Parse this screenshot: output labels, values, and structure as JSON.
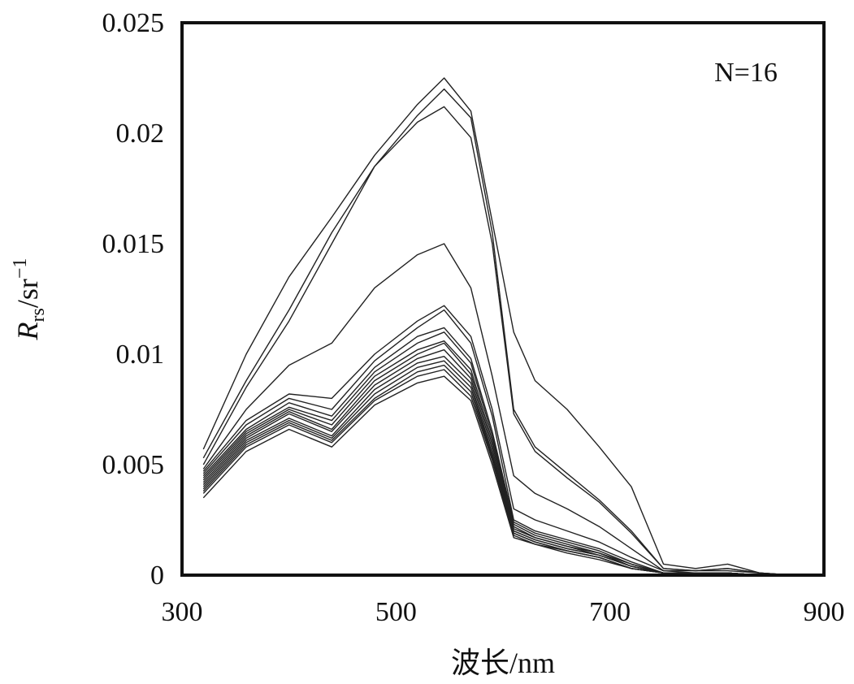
{
  "chart_data": {
    "type": "line",
    "annotation": "N=16",
    "xlabel": "波长/nm",
    "ylabel": {
      "main": "R",
      "sub": "rs",
      "unit": "/sr",
      "sup": "−1"
    },
    "xlim": [
      300,
      900
    ],
    "ylim": [
      0,
      0.025
    ],
    "x_ticks": [
      "300",
      "500",
      "700",
      "900"
    ],
    "y_ticks": [
      "0",
      "0.005",
      "0.01",
      "0.015",
      "0.02",
      "0.025"
    ],
    "grid": false,
    "x": [
      320,
      360,
      400,
      440,
      480,
      520,
      545,
      570,
      590,
      610,
      630,
      660,
      690,
      720,
      750,
      780,
      810,
      840,
      870,
      900
    ],
    "series": [
      {
        "values": [
          0.0057,
          0.01,
          0.0135,
          0.0162,
          0.019,
          0.0213,
          0.0225,
          0.021,
          0.016,
          0.011,
          0.0088,
          0.0075,
          0.0058,
          0.004,
          0.0005,
          0.0003,
          0.0005,
          0.0001,
          0.0,
          0.0
        ]
      },
      {
        "values": [
          0.0053,
          0.0088,
          0.012,
          0.0155,
          0.0185,
          0.0208,
          0.022,
          0.0207,
          0.0155,
          0.0075,
          0.0058,
          0.0046,
          0.0034,
          0.002,
          0.0003,
          0.0002,
          0.0003,
          0.0001,
          0.0,
          0.0
        ]
      },
      {
        "values": [
          0.005,
          0.0085,
          0.0115,
          0.015,
          0.0185,
          0.0205,
          0.0212,
          0.0198,
          0.015,
          0.0073,
          0.0056,
          0.0044,
          0.0033,
          0.0019,
          0.0003,
          0.0002,
          0.0003,
          0.0001,
          0.0,
          0.0
        ]
      },
      {
        "values": [
          0.0048,
          0.0075,
          0.0095,
          0.0105,
          0.013,
          0.0145,
          0.015,
          0.013,
          0.009,
          0.0045,
          0.0037,
          0.003,
          0.0022,
          0.0012,
          0.0002,
          0.0002,
          0.0002,
          0.0001,
          0.0,
          0.0
        ]
      },
      {
        "values": [
          0.0047,
          0.007,
          0.0082,
          0.008,
          0.01,
          0.0115,
          0.0122,
          0.0108,
          0.0075,
          0.003,
          0.0025,
          0.002,
          0.0015,
          0.0008,
          0.0002,
          0.0001,
          0.0001,
          0.0,
          0.0,
          0.0
        ]
      },
      {
        "values": [
          0.0046,
          0.0068,
          0.008,
          0.0075,
          0.0097,
          0.0112,
          0.012,
          0.0105,
          0.0072,
          0.0025,
          0.002,
          0.0016,
          0.0012,
          0.0006,
          0.0001,
          0.0001,
          0.0001,
          0.0,
          0.0,
          0.0
        ]
      },
      {
        "values": [
          0.0045,
          0.0066,
          0.0078,
          0.0072,
          0.0094,
          0.0108,
          0.0112,
          0.0098,
          0.0065,
          0.0024,
          0.0019,
          0.0015,
          0.0011,
          0.0005,
          0.0001,
          0.0001,
          0.0001,
          0.0,
          0.0,
          0.0
        ]
      },
      {
        "values": [
          0.0044,
          0.0065,
          0.0076,
          0.007,
          0.0092,
          0.0105,
          0.011,
          0.0096,
          0.0063,
          0.0023,
          0.0018,
          0.0014,
          0.001,
          0.0005,
          0.0001,
          0.0001,
          0.0001,
          0.0,
          0.0,
          0.0
        ]
      },
      {
        "values": [
          0.0043,
          0.0064,
          0.0075,
          0.0068,
          0.009,
          0.0102,
          0.0106,
          0.0093,
          0.0061,
          0.0022,
          0.0017,
          0.0013,
          0.001,
          0.0004,
          0.0001,
          0.0001,
          0.0001,
          0.0,
          0.0,
          0.0
        ]
      },
      {
        "values": [
          0.0042,
          0.0063,
          0.0074,
          0.0066,
          0.0088,
          0.01,
          0.0105,
          0.0091,
          0.0059,
          0.0021,
          0.0017,
          0.0013,
          0.0009,
          0.0004,
          0.0001,
          0.0001,
          0.0001,
          0.0,
          0.0,
          0.0
        ]
      },
      {
        "values": [
          0.0041,
          0.0062,
          0.0073,
          0.0065,
          0.0086,
          0.0098,
          0.0102,
          0.0089,
          0.0057,
          0.002,
          0.0016,
          0.0012,
          0.0009,
          0.0004,
          0.0001,
          0.0001,
          0.0001,
          0.0,
          0.0,
          0.0
        ]
      },
      {
        "values": [
          0.004,
          0.0061,
          0.0071,
          0.0063,
          0.0084,
          0.0096,
          0.0099,
          0.0087,
          0.0055,
          0.002,
          0.0016,
          0.0012,
          0.0009,
          0.0004,
          0.0001,
          0.0001,
          0.0001,
          0.0,
          0.0,
          0.0
        ]
      },
      {
        "values": [
          0.0039,
          0.006,
          0.007,
          0.0062,
          0.0082,
          0.0094,
          0.0097,
          0.0085,
          0.0054,
          0.0019,
          0.0015,
          0.0011,
          0.0008,
          0.0003,
          0.0001,
          0.0001,
          0.0001,
          0.0,
          0.0,
          0.0
        ]
      },
      {
        "values": [
          0.0038,
          0.0059,
          0.0069,
          0.0061,
          0.008,
          0.0092,
          0.0095,
          0.0083,
          0.0053,
          0.0019,
          0.0015,
          0.0011,
          0.0008,
          0.0003,
          0.0001,
          0.0001,
          0.0001,
          0.0,
          0.0,
          0.0
        ]
      },
      {
        "values": [
          0.0037,
          0.0058,
          0.0068,
          0.006,
          0.0079,
          0.009,
          0.0093,
          0.0081,
          0.0052,
          0.0018,
          0.0014,
          0.0011,
          0.0008,
          0.0003,
          0.0001,
          0.0001,
          0.0001,
          0.0,
          0.0,
          0.0
        ]
      },
      {
        "values": [
          0.0035,
          0.0056,
          0.0066,
          0.0058,
          0.0077,
          0.0087,
          0.009,
          0.0079,
          0.005,
          0.0017,
          0.0014,
          0.001,
          0.0007,
          0.0003,
          0.0001,
          0.0001,
          0.0001,
          0.0,
          0.0,
          0.0
        ]
      }
    ]
  }
}
